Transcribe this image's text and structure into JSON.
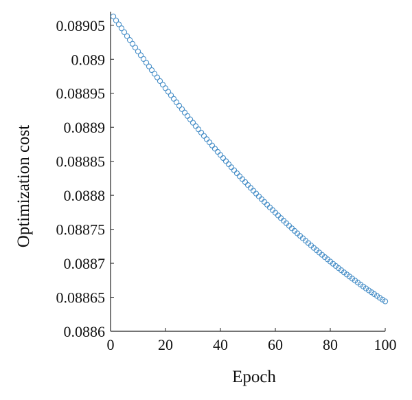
{
  "chart_data": {
    "type": "scatter",
    "title": "",
    "xlabel": "Epoch",
    "ylabel": "Optimization cost",
    "xlim": [
      0,
      100
    ],
    "ylim": [
      0.0886,
      0.08907
    ],
    "xticks": [
      0,
      20,
      40,
      60,
      80,
      100
    ],
    "xtick_labels": [
      "0",
      "20",
      "40",
      "60",
      "80",
      "100"
    ],
    "yticks": [
      0.0886,
      0.08865,
      0.0887,
      0.08875,
      0.0888,
      0.08885,
      0.0889,
      0.08895,
      0.089,
      0.08905
    ],
    "ytick_labels": [
      "0.0886",
      "0.08865",
      "0.0887",
      "0.08875",
      "0.0888",
      "0.08885",
      "0.0889",
      "0.08895",
      "0.089",
      "0.08905"
    ],
    "grid": false,
    "legend": "none",
    "marker": "circle",
    "color": "#4a90c8",
    "series": [
      {
        "x_start": 1,
        "x_end": 100,
        "x_step": 1,
        "y_start": 0.089063,
        "y_end": 0.088644,
        "y_curvature": 0.000162
      }
    ]
  }
}
